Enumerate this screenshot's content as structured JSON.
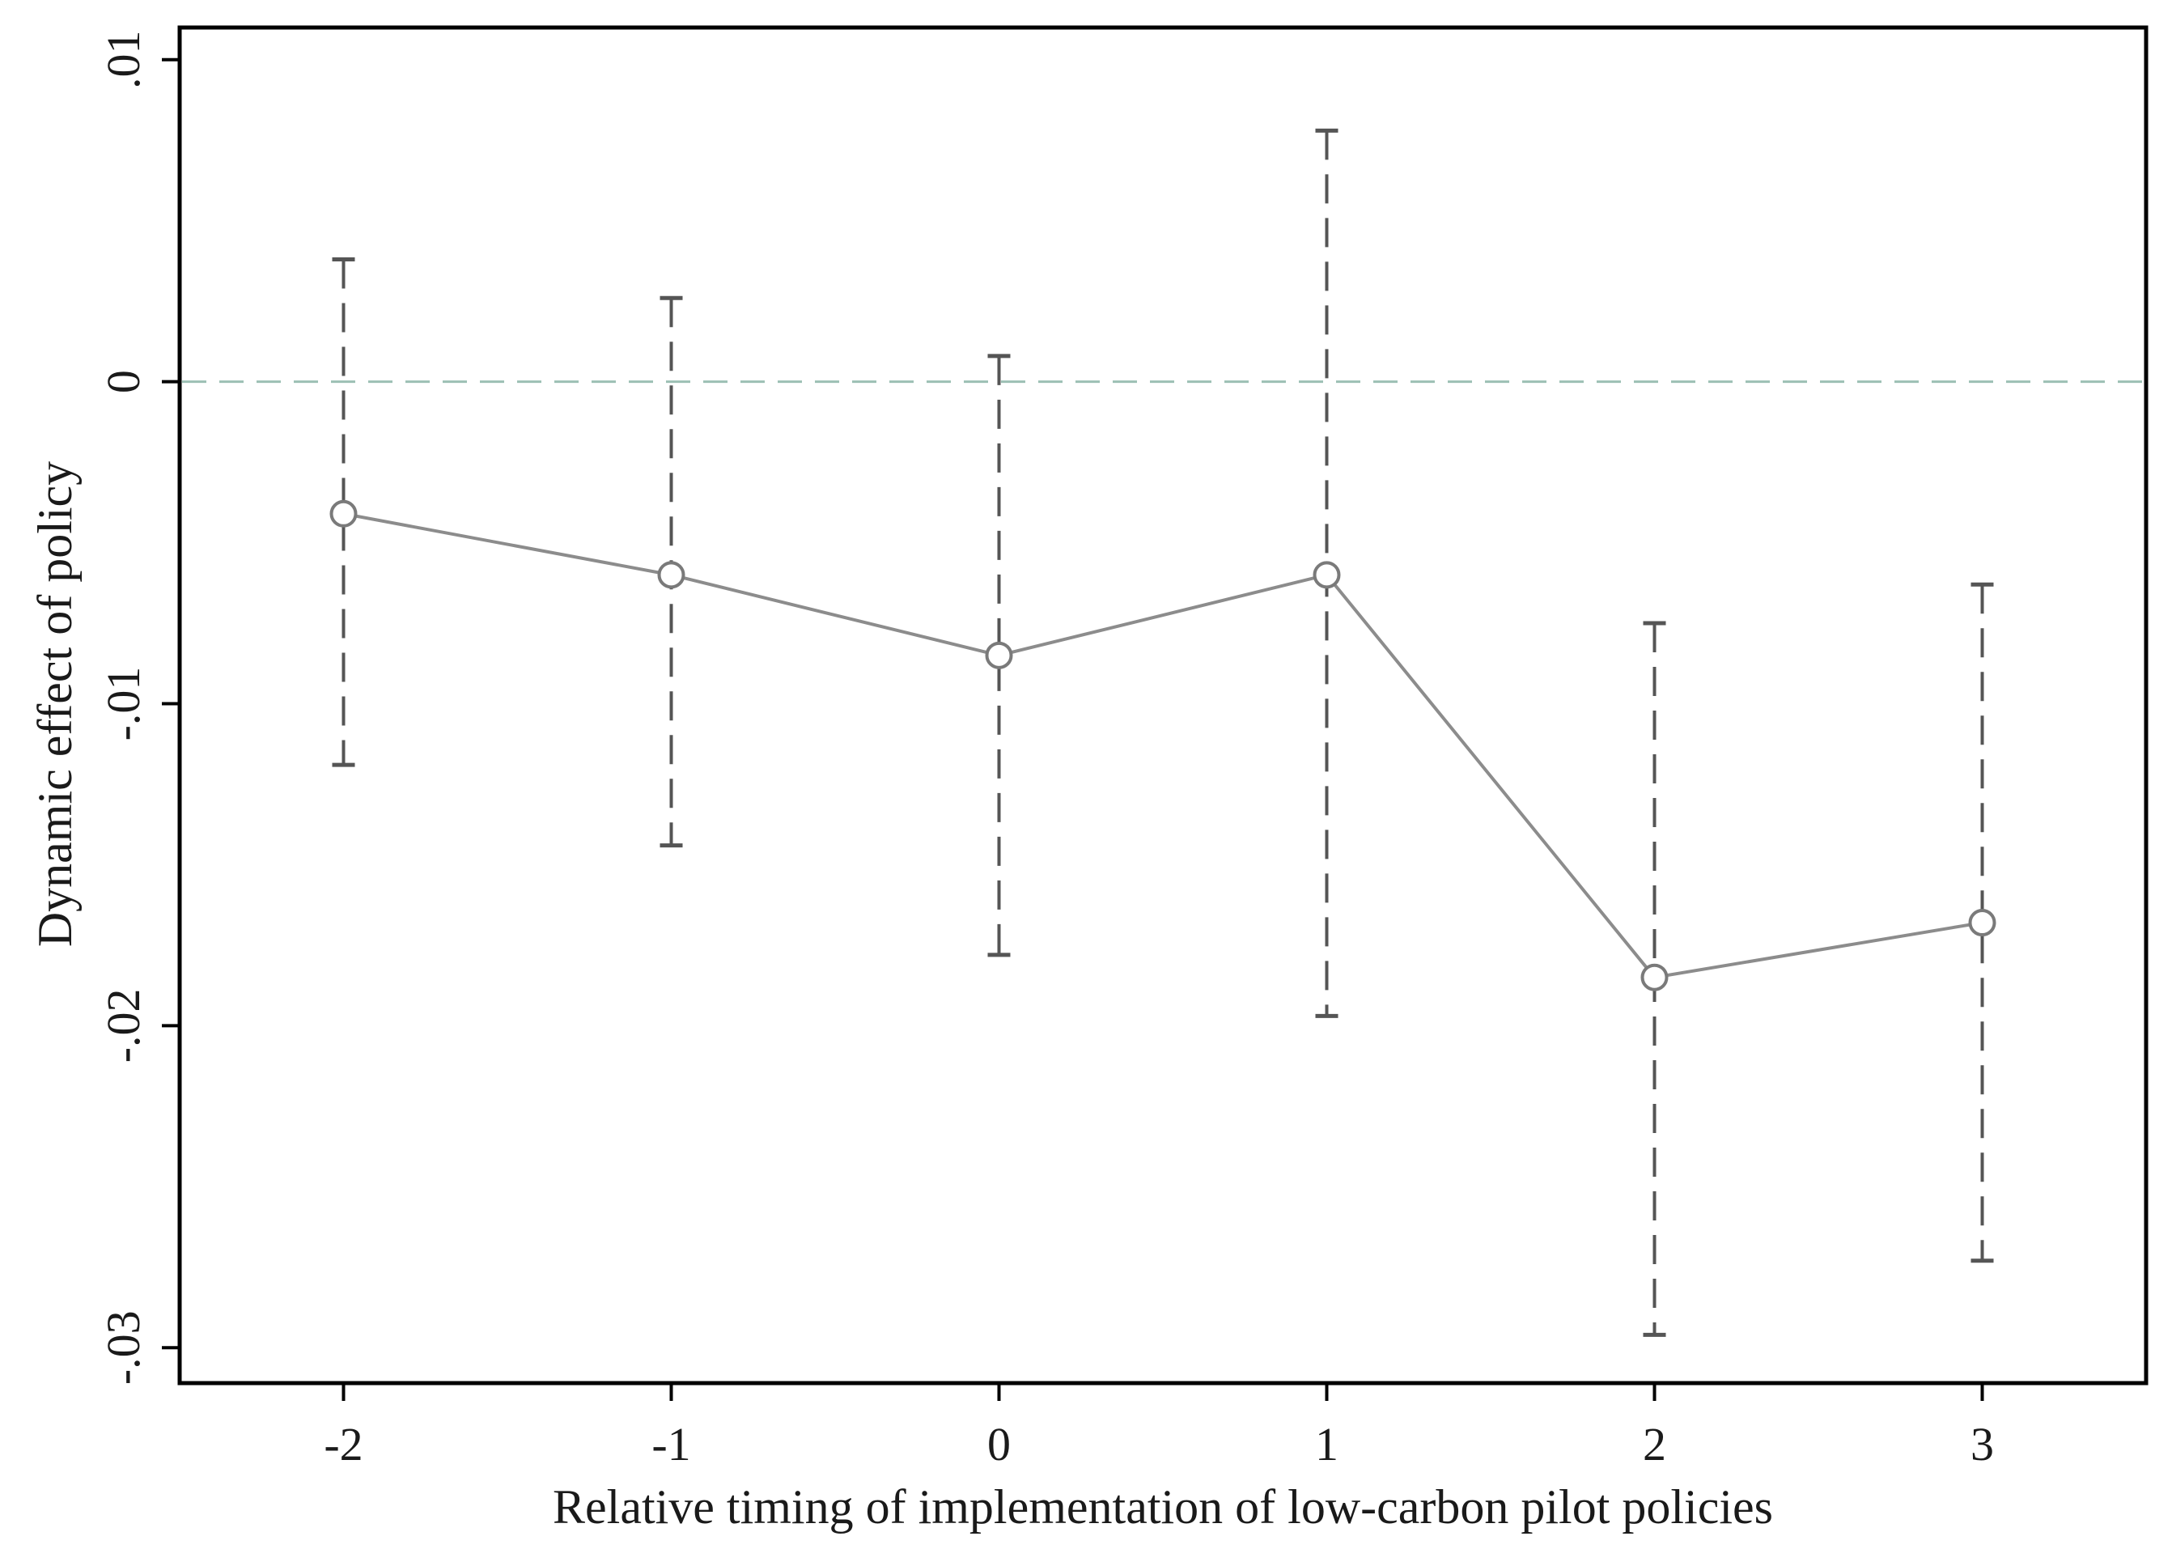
{
  "chart_data": {
    "type": "line",
    "title": "",
    "xlabel": "Relative timing of implementation of low-carbon pilot policies",
    "ylabel": "Dynamic effect of policy",
    "x": [
      -2,
      -1,
      0,
      1,
      2,
      3
    ],
    "x_tick_labels": [
      "-2",
      "-1",
      "0",
      "1",
      "2",
      "3"
    ],
    "xlim": [
      -2.5,
      3.5
    ],
    "y_ticks": [
      0.01,
      0,
      -0.01,
      -0.02,
      -0.03
    ],
    "y_tick_labels": [
      ".01",
      "0",
      "-.01",
      "-.02",
      "-.03"
    ],
    "ylim": [
      -0.0311,
      0.011
    ],
    "series": [
      {
        "values": [
          -0.0041,
          -0.006,
          -0.0085,
          -0.006,
          -0.0185,
          -0.0168
        ],
        "ci_upper": [
          0.0038,
          0.0026,
          0.0008,
          0.0078,
          -0.0075,
          -0.0063
        ],
        "ci_lower": [
          -0.0119,
          -0.0144,
          -0.0178,
          -0.0197,
          -0.0296,
          -0.0273
        ],
        "color": "#8c8c8c",
        "marker": "hollow-circle",
        "error_bar_style": "dashed",
        "error_bar_color": "#555555"
      }
    ],
    "reference_line": {
      "y": 0,
      "style": "dashed",
      "color": "#9cc0b4"
    },
    "grid": false,
    "legend": "none"
  }
}
